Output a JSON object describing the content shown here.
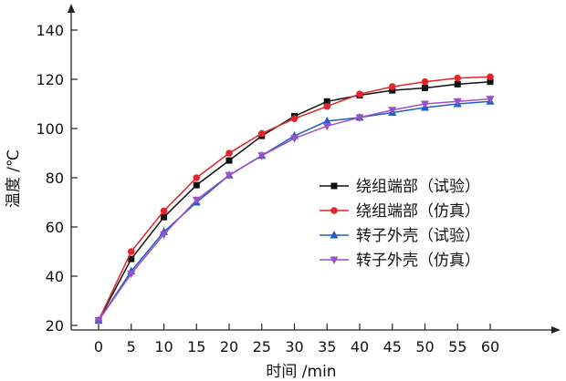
{
  "chart_data": {
    "type": "line",
    "xlabel": "时间 /min",
    "ylabel": "温度 /℃",
    "xlim": [
      0,
      60
    ],
    "ylim": [
      20,
      140
    ],
    "xticks": [
      0,
      5,
      10,
      15,
      20,
      25,
      30,
      35,
      40,
      45,
      50,
      55,
      60
    ],
    "yticks": [
      20,
      40,
      60,
      80,
      100,
      120,
      140
    ],
    "grid": false,
    "legend_position": "center-right",
    "x": [
      0,
      5,
      10,
      15,
      20,
      25,
      30,
      35,
      40,
      45,
      50,
      55,
      60
    ],
    "series": [
      {
        "name": "绕组端部（试验）",
        "color": "#111111",
        "marker": "square",
        "values": [
          22,
          47,
          64,
          77,
          87,
          97,
          105,
          111,
          113.5,
          115.5,
          116.5,
          118,
          119
        ]
      },
      {
        "name": "绕组端部（仿真）",
        "color": "#e0262b",
        "marker": "circle",
        "values": [
          22,
          50,
          66.5,
          80,
          90,
          98,
          104,
          109,
          114,
          117,
          119,
          120.5,
          121
        ]
      },
      {
        "name": "转子外壳（试验）",
        "color": "#1f5fbf",
        "marker": "triangle-up",
        "values": [
          22,
          42,
          58,
          70,
          81,
          89,
          97,
          103,
          104.5,
          106.5,
          108.5,
          110,
          111
        ]
      },
      {
        "name": "转子外壳（仿真）",
        "color": "#9b4fc9",
        "marker": "triangle-down",
        "values": [
          22,
          41,
          57,
          71,
          81,
          89,
          96,
          101,
          104.5,
          107.5,
          110,
          111,
          112
        ]
      }
    ]
  }
}
